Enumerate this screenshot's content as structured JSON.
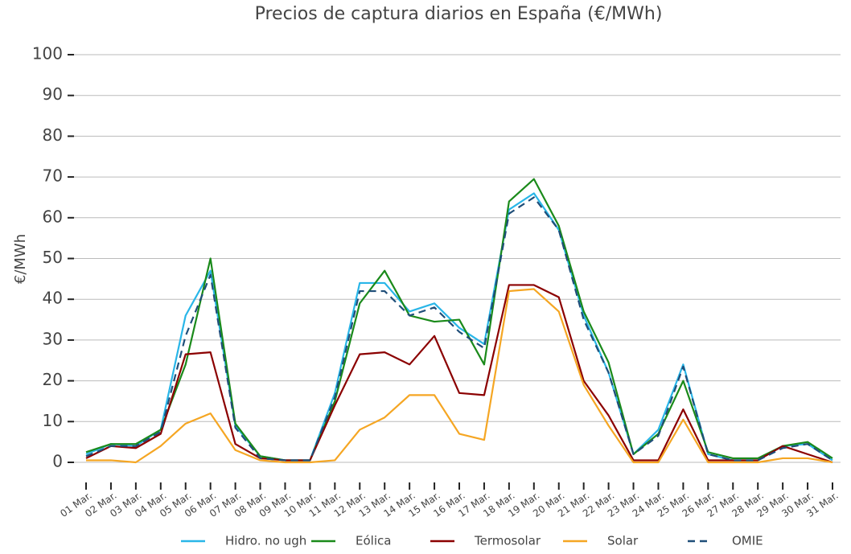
{
  "chart_data": {
    "type": "line",
    "title": "Precios de captura diarios en España (€/MWh)",
    "y_label": "€/MWh",
    "categories": [
      "01 Mar.",
      "02 Mar.",
      "03 Mar.",
      "04 Mar.",
      "05 Mar.",
      "06 Mar.",
      "07 Mar.",
      "08 Mar.",
      "09 Mar.",
      "10 Mar.",
      "11 Mar.",
      "12 Mar.",
      "13 Mar.",
      "14 Mar.",
      "15 Mar.",
      "16 Mar.",
      "17 Mar.",
      "18 Mar.",
      "19 Mar.",
      "20 Mar.",
      "21 Mar.",
      "22 Mar.",
      "23 Mar.",
      "24 Mar.",
      "25 Mar.",
      "26 Mar.",
      "27 Mar.",
      "28 Mar.",
      "29 Mar.",
      "30 Mar.",
      "31 Mar."
    ],
    "series": [
      {
        "name": "Hidro. no ugh",
        "color": "#29b6e8",
        "values": [
          2,
          4.5,
          4,
          8,
          36,
          47,
          9,
          1.5,
          0.5,
          0.5,
          17,
          44,
          44,
          37,
          39,
          33,
          29,
          62,
          66,
          57,
          36,
          22,
          2,
          8,
          24,
          2,
          0.5,
          0.5,
          4,
          4.5,
          0.5
        ]
      },
      {
        "name": "Eólica",
        "color": "#1a8a1a",
        "values": [
          2.5,
          4.5,
          4.5,
          8,
          24,
          50,
          9.5,
          1.5,
          0.5,
          0.5,
          15,
          39,
          47,
          36,
          34.5,
          35,
          24,
          64,
          69.5,
          58,
          37,
          24.5,
          2,
          7,
          20,
          2.5,
          1,
          1,
          4,
          5,
          1
        ]
      },
      {
        "name": "Termosolar",
        "color": "#8b0000",
        "values": [
          1,
          4,
          3.5,
          7,
          26.5,
          27,
          4.5,
          1,
          0.5,
          0.5,
          14,
          26.5,
          27,
          24,
          31,
          17,
          16.5,
          43.5,
          43.5,
          40.5,
          20,
          11.5,
          0.5,
          0.5,
          13,
          0.5,
          0.5,
          0.5,
          4,
          2,
          0
        ]
      },
      {
        "name": "Solar",
        "color": "#f5a623",
        "values": [
          0.5,
          0.5,
          0,
          4,
          9.5,
          12,
          3,
          0.5,
          0,
          0,
          0.5,
          8,
          11,
          16.5,
          16.5,
          7,
          5.5,
          42,
          42.5,
          37,
          19,
          9,
          0,
          0,
          10.5,
          0,
          0,
          0,
          1,
          1,
          0
        ]
      },
      {
        "name": "OMIE",
        "color": "#1f4e79",
        "dashed": true,
        "values": [
          1.5,
          4,
          4,
          7.5,
          31,
          46,
          8.5,
          1,
          0.5,
          0.5,
          16,
          42,
          42,
          36,
          38,
          32,
          28,
          61,
          65,
          57,
          35,
          22,
          2,
          6.5,
          23.5,
          2,
          0.5,
          0.5,
          3.5,
          4.5,
          0.5
        ]
      }
    ],
    "ylim": [
      0,
      100
    ],
    "yticks": [
      0,
      10,
      20,
      30,
      40,
      50,
      60,
      70,
      80,
      90,
      100
    ],
    "grid": true
  }
}
